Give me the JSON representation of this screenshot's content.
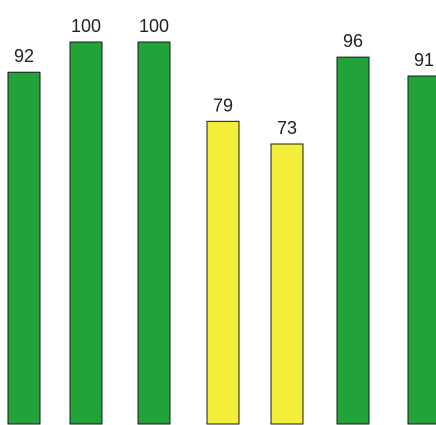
{
  "chart_data": {
    "type": "bar",
    "categories": [
      "",
      "",
      "",
      "",
      "",
      "",
      ""
    ],
    "values": [
      92,
      100,
      100,
      79,
      73,
      96,
      91
    ],
    "value_labels": [
      "92",
      "100",
      "100",
      "79",
      "73",
      "96",
      "91"
    ],
    "bar_colors": [
      "#22a33a",
      "#22a33a",
      "#22a33a",
      "#f2ee3a",
      "#f2ee3a",
      "#22a33a",
      "#22a33a"
    ],
    "title": "",
    "xlabel": "",
    "ylabel": "",
    "ylim": [
      0,
      100
    ],
    "grid": false,
    "legend": "none"
  },
  "colors": {
    "green": "#22a33a",
    "yellow": "#f2ee3a",
    "outline": "#1a1a1a",
    "background": "#ffffff"
  }
}
